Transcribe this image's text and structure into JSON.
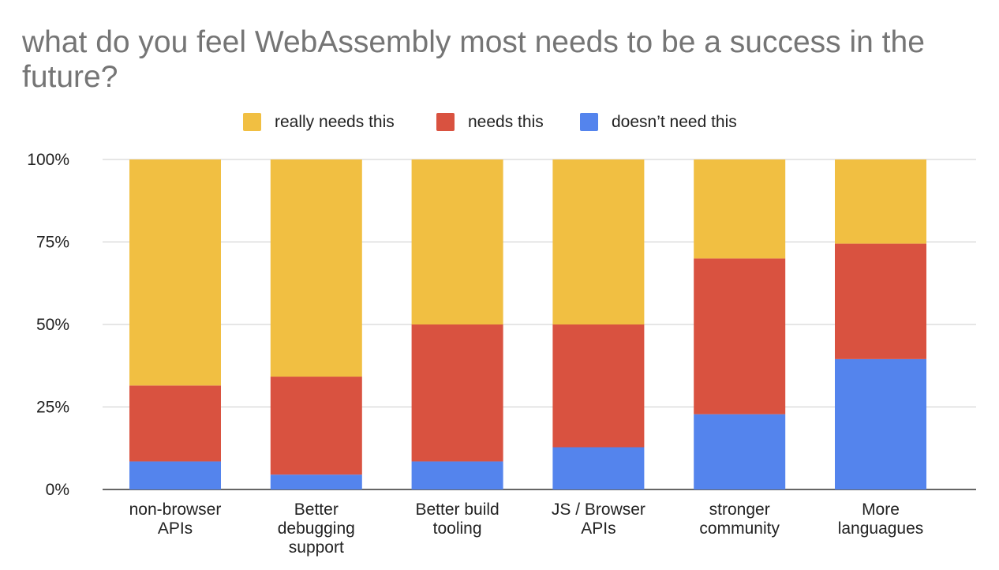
{
  "chart_data": {
    "type": "bar",
    "stacked": true,
    "percent": true,
    "title": "what do you feel WebAssembly most needs to be a success in the future?",
    "categories": [
      [
        "non-browser",
        "APIs"
      ],
      [
        "Better",
        "debugging",
        "support"
      ],
      [
        "Better build",
        "tooling"
      ],
      [
        "JS / Browser",
        "APIs"
      ],
      [
        "stronger",
        "community"
      ],
      [
        "More",
        "languagues"
      ]
    ],
    "series": [
      {
        "name": "doesn’t need this",
        "color": "#5484ed",
        "values": [
          8.5,
          4.5,
          8.5,
          12.8,
          22.8,
          39.5
        ]
      },
      {
        "name": "needs this",
        "color": "#d95240",
        "values": [
          23,
          29.7,
          41.5,
          37.2,
          47.2,
          35
        ]
      },
      {
        "name": "really needs this",
        "color": "#f1bf42",
        "values": [
          68.5,
          65.8,
          50,
          50,
          30,
          25.5
        ]
      }
    ],
    "legend_order": [
      "really needs this",
      "needs this",
      "doesn’t need this"
    ],
    "legend_position": "top",
    "y_ticks": [
      0,
      25,
      50,
      75,
      100
    ],
    "y_tick_labels": [
      "0%",
      "25%",
      "50%",
      "75%",
      "100%"
    ],
    "ylim": [
      0,
      100
    ],
    "grid": true
  }
}
